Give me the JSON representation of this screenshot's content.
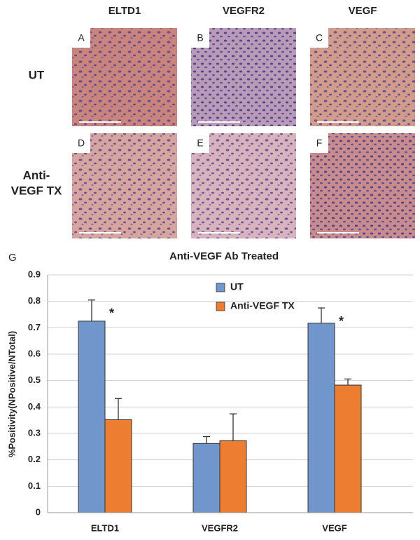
{
  "panels": {
    "columns": [
      "ELTD1",
      "VEGFR2",
      "VEGF"
    ],
    "rows": [
      [
        "UT"
      ],
      [
        "Anti-",
        "VEGF TX"
      ]
    ],
    "letters": [
      [
        "A",
        "B",
        "C"
      ],
      [
        "D",
        "E",
        "F"
      ]
    ]
  },
  "chart_label": "G",
  "chart_data": {
    "type": "bar",
    "title": "Anti-VEGF Ab Treated",
    "ylabel": "%Positivity(NPositive/NTotal)",
    "categories": [
      "ELTD1",
      "VEGFR2",
      "VEGF"
    ],
    "series": [
      {
        "name": "UT",
        "color": "#7096cc",
        "values": [
          0.725,
          0.262,
          0.717
        ],
        "errors": [
          0.08,
          0.026,
          0.058
        ]
      },
      {
        "name": "Anti-VEGF TX",
        "color": "#ed7d31",
        "values": [
          0.352,
          0.272,
          0.483
        ],
        "errors": [
          0.08,
          0.102,
          0.023
        ]
      }
    ],
    "annotations": [
      {
        "text": "*",
        "category": 0
      },
      {
        "text": "*",
        "category": 2
      }
    ],
    "ylim": [
      0,
      0.9
    ],
    "yticks": [
      0,
      0.1,
      0.2,
      0.3,
      0.4,
      0.5,
      0.6,
      0.7,
      0.8,
      0.9
    ],
    "grid": true,
    "legend": "upper center"
  }
}
